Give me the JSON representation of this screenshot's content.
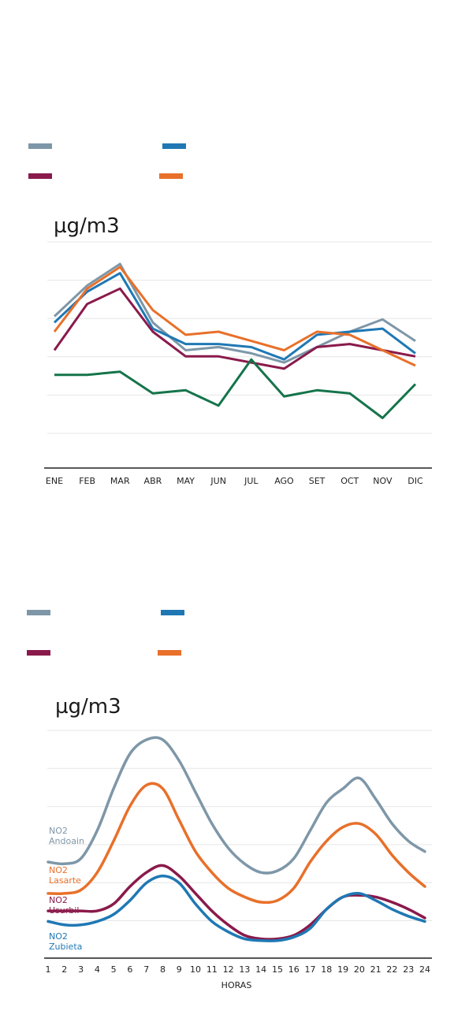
{
  "colors": {
    "gray": "#7e97a8",
    "blue": "#1f78b4",
    "maroon": "#8a1a4b",
    "orange": "#e8702a",
    "green": "#15744a",
    "grid": "#e6e6e6",
    "axis": "#222222"
  },
  "chart_data": [
    {
      "type": "line",
      "unit_label": "µg/m3",
      "categories": [
        "ENE",
        "FEB",
        "MAR",
        "ABR",
        "MAY",
        "JUN",
        "JUL",
        "AGO",
        "SET",
        "OCT",
        "NOV",
        "DIC"
      ],
      "ylim": [
        0,
        55
      ],
      "grid": true,
      "series": [
        {
          "color": "gray",
          "values": [
            38,
            48,
            55,
            36,
            27,
            28,
            26,
            23,
            28,
            33,
            37,
            30
          ]
        },
        {
          "color": "blue",
          "values": [
            36,
            46,
            52,
            34,
            29,
            29,
            28,
            24,
            32,
            33,
            34,
            26
          ]
        },
        {
          "color": "maroon",
          "values": [
            27,
            42,
            47,
            33,
            25,
            25,
            23,
            21,
            28,
            29,
            27,
            25
          ]
        },
        {
          "color": "orange",
          "values": [
            33,
            47,
            54,
            40,
            32,
            33,
            30,
            27,
            33,
            32,
            27,
            22
          ]
        },
        {
          "color": "green",
          "values": [
            19,
            19,
            20,
            13,
            14,
            9,
            24,
            12,
            14,
            13,
            5,
            16
          ]
        }
      ]
    },
    {
      "type": "line",
      "unit_label": "µg/m3",
      "xlabel": "HORAS",
      "categories": [
        "1",
        "2",
        "3",
        "4",
        "5",
        "6",
        "7",
        "8",
        "9",
        "10",
        "11",
        "12",
        "13",
        "14",
        "15",
        "16",
        "17",
        "18",
        "19",
        "20",
        "21",
        "22",
        "23",
        "24"
      ],
      "ylim": [
        0,
        60
      ],
      "grid": true,
      "series": [
        {
          "name": "NO2 Andoain",
          "label_lines": [
            "NO2",
            "Andoain"
          ],
          "color": "gray",
          "values": [
            23,
            22.5,
            24,
            32,
            44,
            54,
            58,
            58,
            52,
            43,
            34,
            27,
            22.5,
            20,
            20.5,
            24,
            32,
            40,
            44,
            47,
            41,
            34,
            29,
            26
          ]
        },
        {
          "name": "NO2 Lasarte",
          "label_lines": [
            "NO2",
            "Lasarte"
          ],
          "color": "orange",
          "values": [
            14,
            14,
            15,
            20,
            29,
            39,
            45,
            44,
            35,
            26,
            20,
            15.5,
            13,
            11.5,
            12,
            15.5,
            23,
            29,
            33,
            34,
            31,
            25,
            20,
            16
          ]
        },
        {
          "name": "NO2 Usurbil",
          "label_lines": [
            "NO2",
            "Usurbil"
          ],
          "color": "maroon",
          "values": [
            9,
            9,
            9,
            9,
            11,
            16,
            20,
            22,
            19,
            14,
            9,
            5,
            2,
            1,
            1,
            2,
            5,
            9.5,
            13,
            13.5,
            13,
            11.5,
            9.5,
            7
          ]
        },
        {
          "name": "NO2 Zubieta",
          "label_lines": [
            "NO2",
            "Zubieta"
          ],
          "color": "blue",
          "values": [
            6,
            5,
            5,
            6,
            8,
            12,
            17,
            19,
            17,
            11,
            6,
            3,
            1,
            0.5,
            0.5,
            1.5,
            4,
            9.5,
            13,
            14,
            12,
            9.5,
            7.5,
            6
          ]
        }
      ]
    }
  ]
}
